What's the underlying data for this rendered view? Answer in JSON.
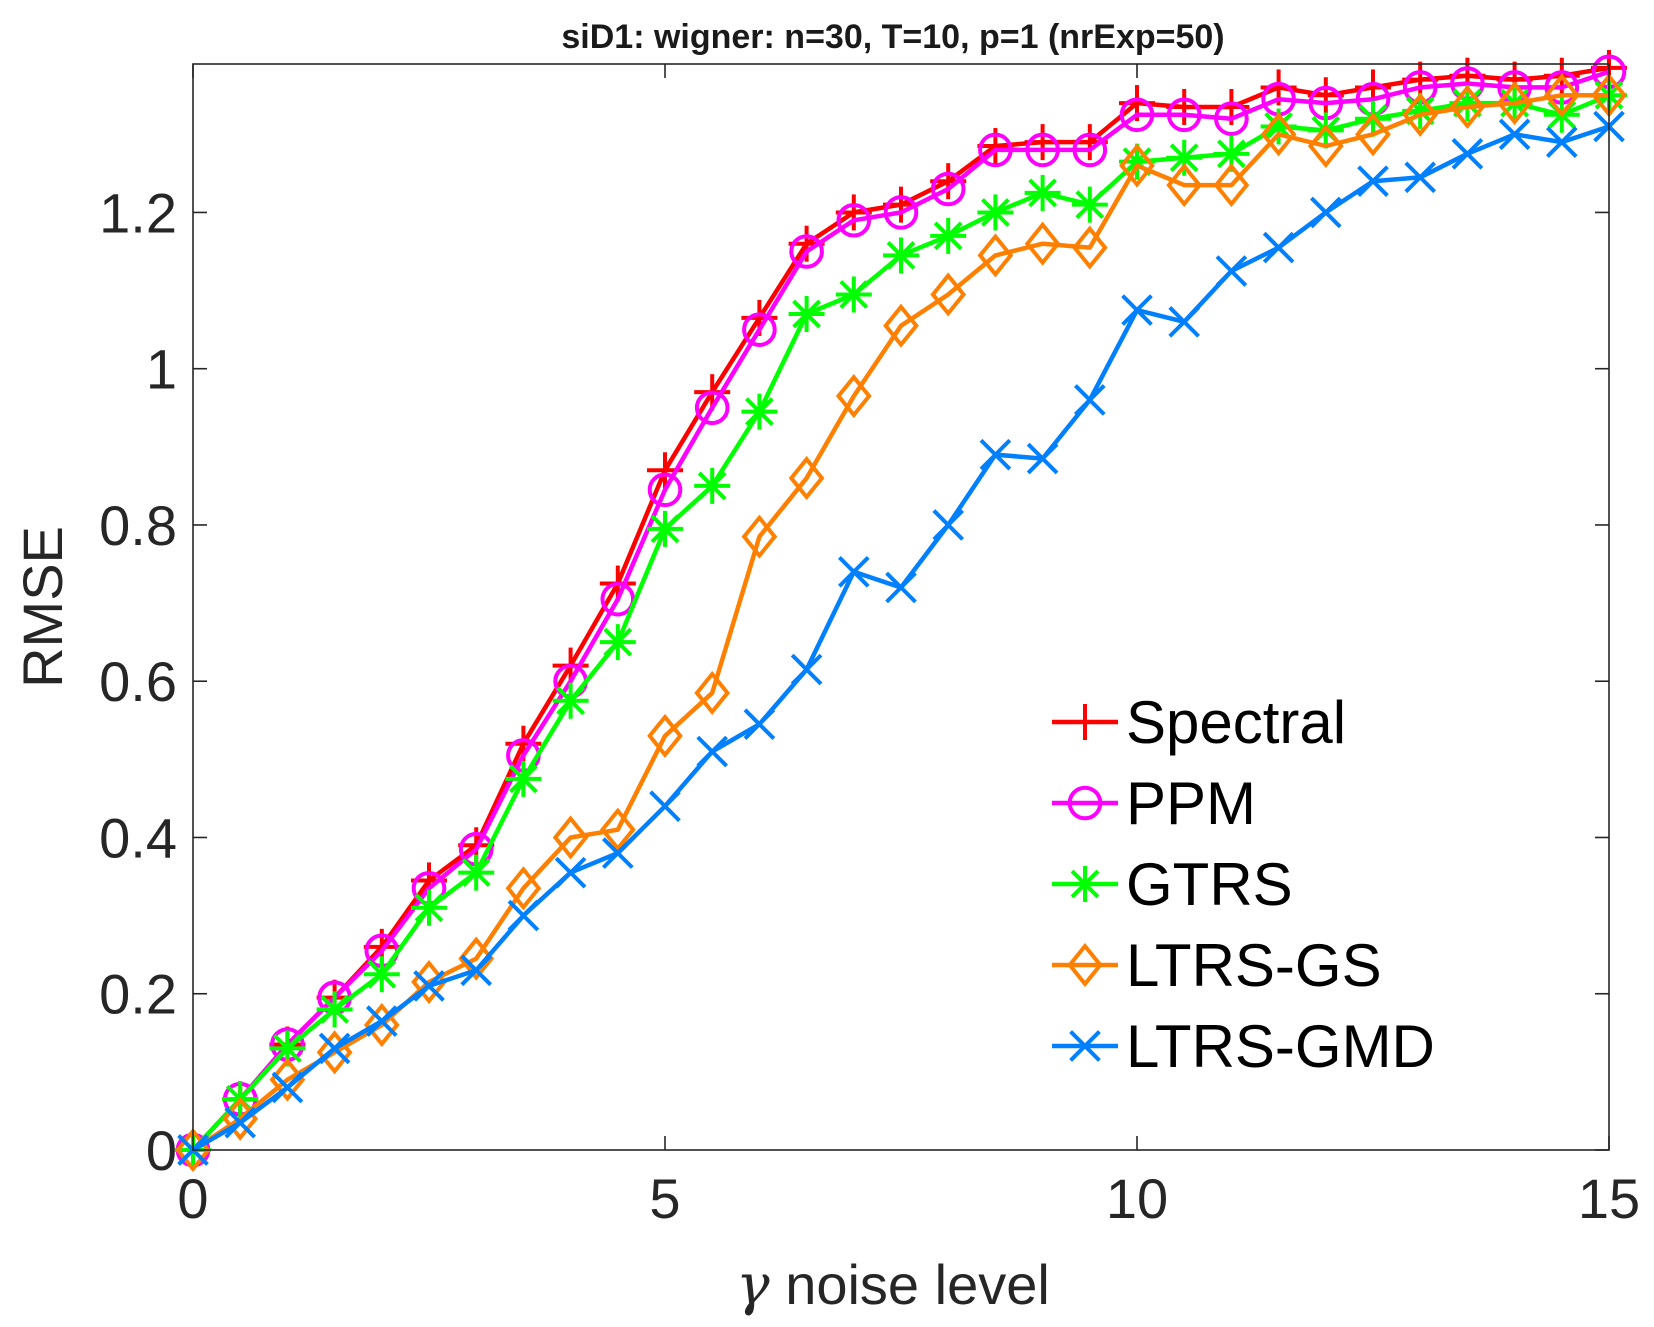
{
  "chart_data": {
    "type": "line",
    "title": "siD1: wigner: n=30, T=10, p=1 (nrExp=50)",
    "xlabel_symbol": "γ",
    "xlabel_text": " noise level",
    "ylabel": "RMSE",
    "xlim": [
      0,
      15
    ],
    "ylim": [
      0,
      1.39
    ],
    "xticks": [
      0,
      5,
      10,
      15
    ],
    "xtick_labels": [
      "0",
      "5",
      "10",
      "15"
    ],
    "yticks": [
      0,
      0.2,
      0.4,
      0.6,
      0.8,
      1,
      1.2
    ],
    "ytick_labels": [
      "0",
      "0.2",
      "0.4",
      "0.6",
      "0.8",
      "1",
      "1.2"
    ],
    "grid": false,
    "legend_position": "bottom-right",
    "x": [
      0,
      0.5,
      1,
      1.5,
      2,
      2.5,
      3,
      3.5,
      4,
      4.5,
      5,
      5.5,
      6,
      6.5,
      7,
      7.5,
      8,
      8.5,
      9,
      9.5,
      10,
      10.5,
      11,
      11.5,
      12,
      12.5,
      13,
      13.5,
      14,
      14.5,
      15
    ],
    "series": [
      {
        "name": "Spectral",
        "color": "#ff0000",
        "marker": "plus",
        "values": [
          0,
          0.065,
          0.135,
          0.195,
          0.26,
          0.345,
          0.39,
          0.52,
          0.62,
          0.725,
          0.87,
          0.97,
          1.065,
          1.16,
          1.2,
          1.21,
          1.24,
          1.285,
          1.29,
          1.29,
          1.34,
          1.335,
          1.335,
          1.36,
          1.35,
          1.36,
          1.37,
          1.375,
          1.37,
          1.375,
          1.385
        ]
      },
      {
        "name": "PPM",
        "color": "#ff00ff",
        "marker": "circle",
        "values": [
          0,
          0.065,
          0.135,
          0.195,
          0.255,
          0.335,
          0.385,
          0.505,
          0.6,
          0.705,
          0.845,
          0.95,
          1.05,
          1.15,
          1.19,
          1.2,
          1.23,
          1.28,
          1.28,
          1.28,
          1.325,
          1.325,
          1.32,
          1.345,
          1.34,
          1.345,
          1.36,
          1.365,
          1.36,
          1.36,
          1.38
        ]
      },
      {
        "name": "GTRS",
        "color": "#00ff00",
        "marker": "asterisk",
        "values": [
          0,
          0.065,
          0.13,
          0.18,
          0.225,
          0.31,
          0.355,
          0.475,
          0.575,
          0.65,
          0.795,
          0.85,
          0.945,
          1.07,
          1.095,
          1.145,
          1.17,
          1.2,
          1.225,
          1.21,
          1.265,
          1.27,
          1.275,
          1.31,
          1.305,
          1.32,
          1.33,
          1.34,
          1.34,
          1.325,
          1.35
        ]
      },
      {
        "name": "LTRS-GS",
        "color": "#ff8000",
        "marker": "diamond",
        "values": [
          0,
          0.04,
          0.09,
          0.125,
          0.16,
          0.215,
          0.245,
          0.335,
          0.4,
          0.41,
          0.53,
          0.585,
          0.785,
          0.86,
          0.965,
          1.055,
          1.095,
          1.145,
          1.16,
          1.155,
          1.26,
          1.235,
          1.235,
          1.3,
          1.285,
          1.3,
          1.325,
          1.335,
          1.34,
          1.35,
          1.35
        ]
      },
      {
        "name": "LTRS-GMD",
        "color": "#0080ff",
        "marker": "cross",
        "values": [
          0,
          0.035,
          0.08,
          0.13,
          0.165,
          0.21,
          0.23,
          0.3,
          0.355,
          0.38,
          0.44,
          0.51,
          0.545,
          0.615,
          0.74,
          0.72,
          0.8,
          0.89,
          0.885,
          0.96,
          1.075,
          1.06,
          1.125,
          1.155,
          1.2,
          1.24,
          1.245,
          1.275,
          1.3,
          1.29,
          1.31
        ]
      }
    ]
  }
}
